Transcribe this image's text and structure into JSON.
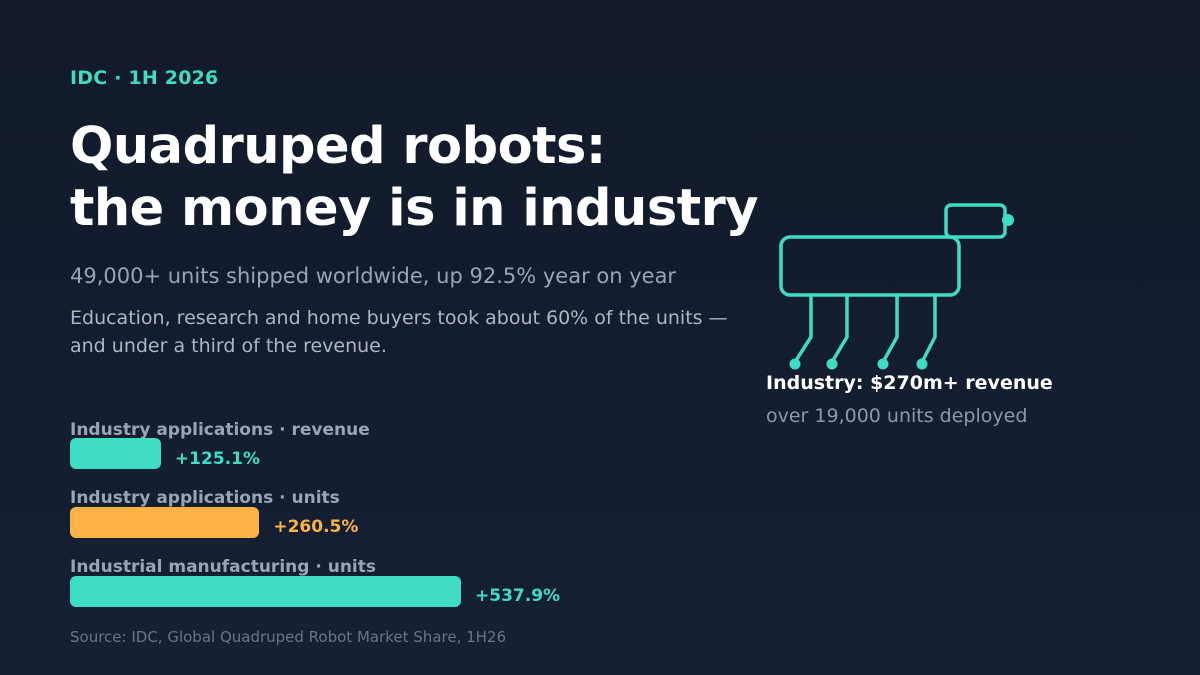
{
  "header": {
    "kicker": "IDC · 1H 2026",
    "title_line1": "Quadruped robots:",
    "title_line2": "the money is in industry",
    "subtitle": "49,000+ units shipped worldwide, up 92.5% year on year",
    "note_line1": "Education, research and home buyers took about 60% of the units —",
    "note_line2": "and under a third of the revenue."
  },
  "callout": {
    "value": "Industry: $270m+ revenue",
    "units": "over 19,000 units deployed"
  },
  "source": "Source: IDC, Global Quadruped Robot Market Share, 1H26",
  "colors": {
    "teal": "#3ddcc3",
    "orange": "#ffb347"
  },
  "chart_data": {
    "type": "bar",
    "orientation": "horizontal",
    "categories": [
      "Industry applications · revenue",
      "Industry applications · units",
      "Industrial manufacturing · units"
    ],
    "values": [
      125.1,
      260.5,
      537.9
    ],
    "value_labels": [
      "+125.1%",
      "+260.5%",
      "+537.9%"
    ],
    "unit": "%",
    "bar_colors": [
      "#3ddcc3",
      "#ffb347",
      "#3ddcc3"
    ],
    "label_colors": [
      "#3ddcc3",
      "#ffb347",
      "#3ddcc3"
    ],
    "xlim": [
      0,
      537.9
    ]
  }
}
